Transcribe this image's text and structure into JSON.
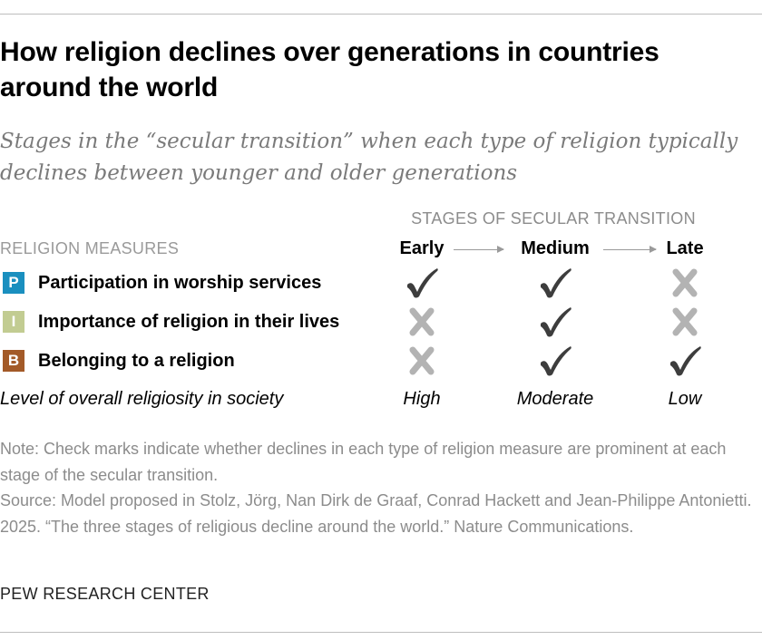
{
  "title": "How religion declines over generations in countries around the world",
  "subtitle": "Stages in the “secular transition” when each type of religion typically declines between younger and older generations",
  "stages_header": "STAGES OF SECULAR TRANSITION",
  "measures_header": "RELIGION MEASURES",
  "stages": [
    "Early",
    "Medium",
    "Late"
  ],
  "measures": [
    {
      "badge": "P",
      "label": "Participation in worship services",
      "color": "#1a8fbf",
      "declines": [
        true,
        true,
        false
      ]
    },
    {
      "badge": "I",
      "label": "Importance of religion in their lives",
      "color": "#c2cc92",
      "declines": [
        false,
        true,
        false
      ]
    },
    {
      "badge": "B",
      "label": "Belonging to a religion",
      "color": "#a35a28",
      "declines": [
        false,
        true,
        true
      ]
    }
  ],
  "icons": {
    "true": "check-icon",
    "false": "x-icon"
  },
  "colors": {
    "check": "#3d3d3d",
    "x": "#b3b3b3"
  },
  "religiosity": {
    "label": "Level of overall religiosity in society",
    "levels": [
      "High",
      "Moderate",
      "Low"
    ]
  },
  "note": "Note: Check marks indicate whether declines in each type of religion measure are prominent at each stage of the secular transition.",
  "source": "Source: Model proposed in Stolz, Jörg, Nan Dirk de Graaf, Conrad Hackett and Jean-Philippe Antonietti. 2025. “The three stages of religious decline around the world.” Nature Communications.",
  "branding": "PEW RESEARCH CENTER"
}
